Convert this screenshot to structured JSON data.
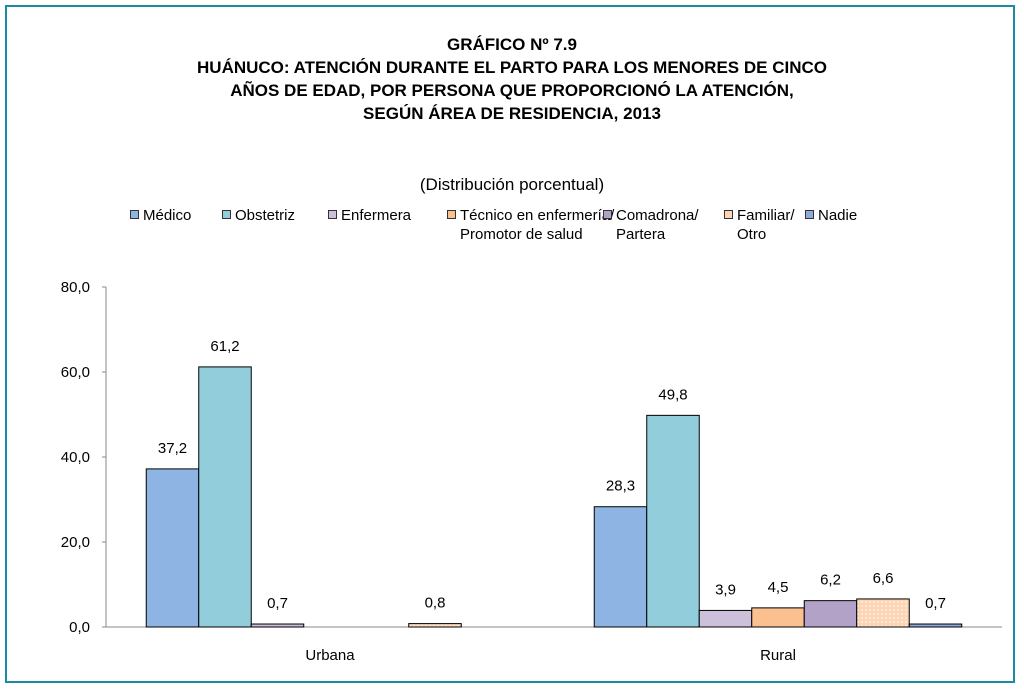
{
  "chart_data": {
    "type": "bar",
    "title": [
      "GRÁFICO Nº 7.9",
      "HUÁNUCO: ATENCIÓN DURANTE EL PARTO PARA LOS MENORES DE CINCO",
      "AÑOS DE EDAD, POR PERSONA  QUE PROPORCIONÓ LA ATENCIÓN,",
      "SEGÚN ÁREA DE RESIDENCIA, 2013"
    ],
    "subtitle": "(Distribución porcentual)",
    "categories": [
      "Urbana",
      "Rural"
    ],
    "series": [
      {
        "name": "Médico",
        "color": "#8eb4e3",
        "values": [
          37.2,
          28.3
        ],
        "value_labels": [
          "37,2",
          "28,3"
        ]
      },
      {
        "name": "Obstetriz",
        "color": "#92cddc",
        "values": [
          61.2,
          49.8
        ],
        "value_labels": [
          "61,2",
          "49,8"
        ]
      },
      {
        "name": "Enfermera",
        "color": "#ccc0da",
        "values": [
          0.7,
          3.9
        ],
        "value_labels": [
          "0,7",
          "3,9"
        ]
      },
      {
        "name": "Técnico en enfermería/\nPromotor de salud",
        "color": "#fac090",
        "values": [
          null,
          4.5
        ],
        "value_labels": [
          null,
          "4,5"
        ]
      },
      {
        "name": "Comadrona/\nPartera",
        "color": "#b3a2c7",
        "values": [
          null,
          6.2
        ],
        "value_labels": [
          null,
          "6,2"
        ]
      },
      {
        "name": "Familiar/\nOtro",
        "color": "#fcd5b5",
        "values": [
          0.8,
          6.6
        ],
        "value_labels": [
          "0,8",
          "6,6"
        ]
      },
      {
        "name": "Nadie",
        "color": "#8ea9db",
        "values": [
          null,
          0.7
        ],
        "value_labels": [
          null,
          "0,7"
        ]
      }
    ],
    "ylim": [
      0,
      80
    ],
    "yticks": [
      {
        "value": 0,
        "label": "0,0"
      },
      {
        "value": 20,
        "label": "20,0"
      },
      {
        "value": 40,
        "label": "40,0"
      },
      {
        "value": 60,
        "label": "60,0"
      },
      {
        "value": 80,
        "label": "80,0"
      }
    ],
    "legend": "top"
  }
}
